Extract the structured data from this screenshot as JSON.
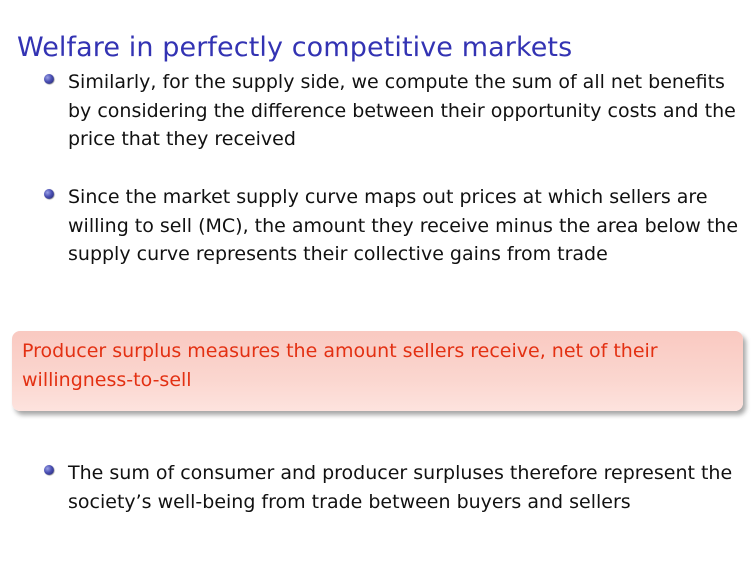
{
  "slide": {
    "title": "Welfare in perfectly competitive markets",
    "bullets": [
      "Similarly, for the supply side, we compute the sum of all net benefits by considering the difference between their opportunity costs and the price that they received",
      "Since the market supply curve maps out prices at which sellers are willing to sell (MC), the amount they receive minus the area below the supply curve represents their collective gains from trade",
      "The sum of consumer and producer surpluses therefore represent the society’s well-being from trade between buyers and sellers"
    ],
    "callout": "Producer surplus measures the amount sellers receive, net of their willingness-to-sell"
  },
  "colors": {
    "title": "#3333b3",
    "callout_text": "#e33012",
    "callout_background": "#fbd6cf",
    "bullet_dot": "#4a4fb3"
  }
}
